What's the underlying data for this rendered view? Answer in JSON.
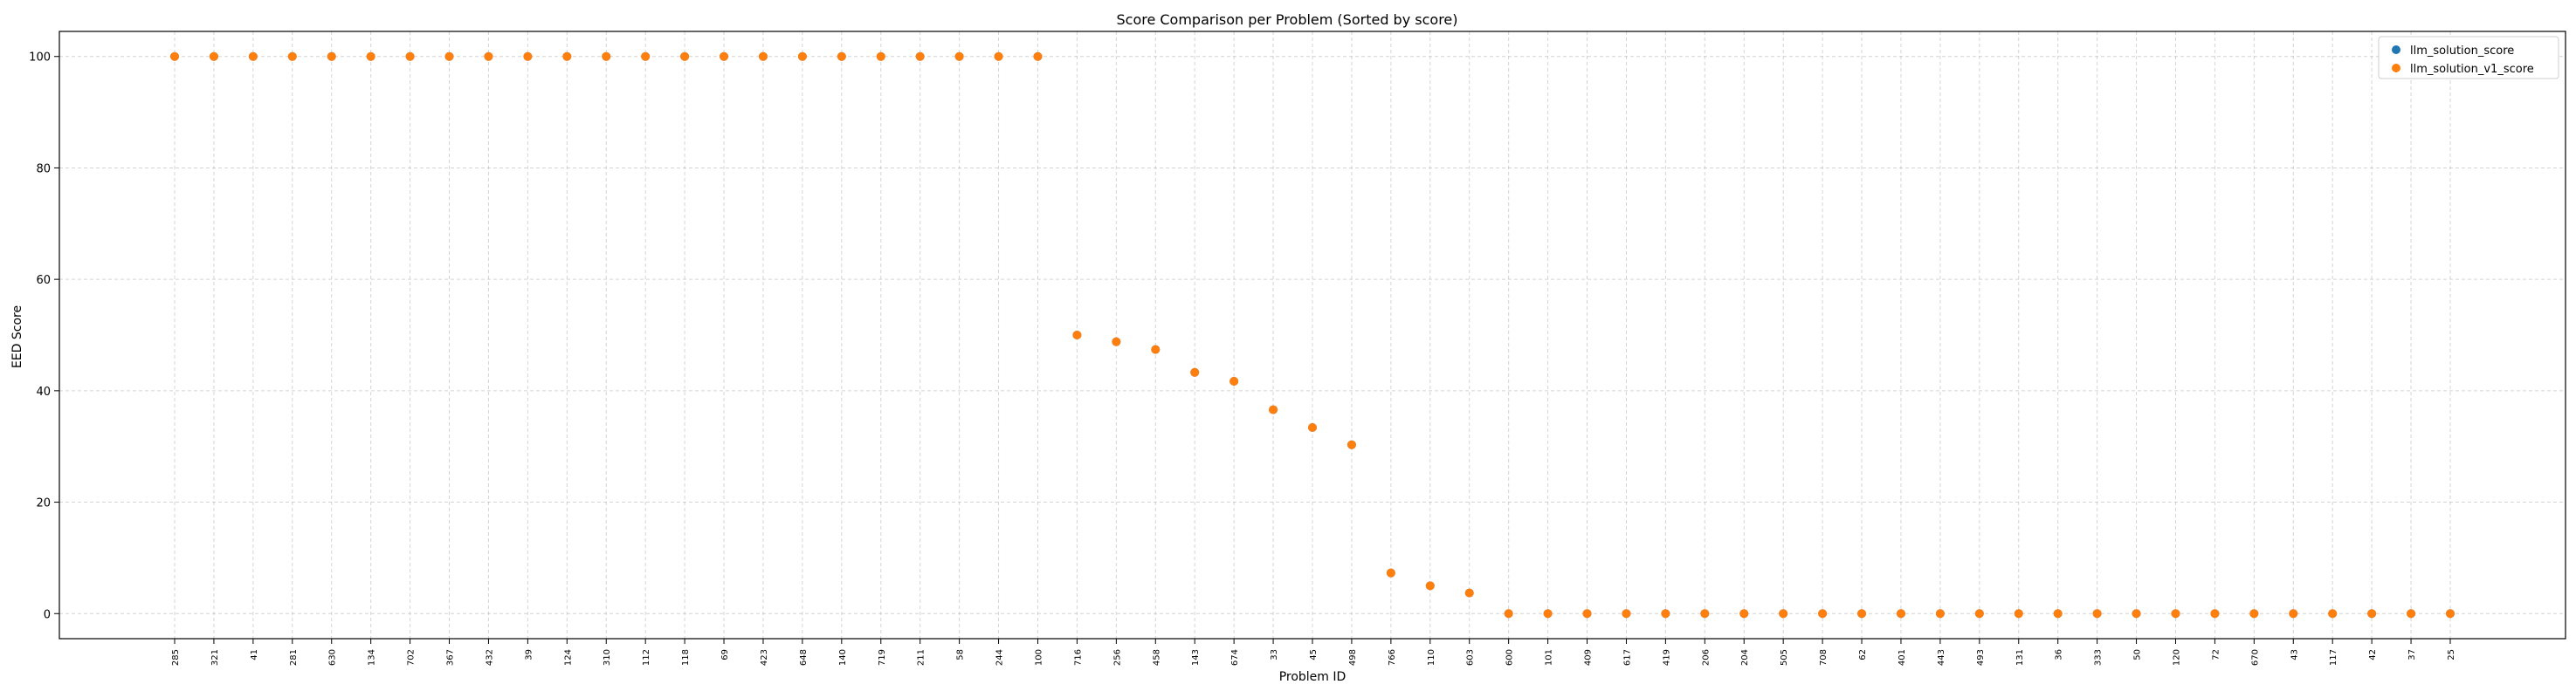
{
  "chart_data": {
    "type": "scatter",
    "title": "Score Comparison per Problem (Sorted by score)",
    "xlabel": "Problem ID",
    "ylabel": "EED Score",
    "ylim": [
      -4.5,
      104.5
    ],
    "yticks": [
      0,
      20,
      40,
      60,
      80,
      100
    ],
    "grid": true,
    "legend_position": "top-right",
    "categories": [
      "285",
      "321",
      "41",
      "281",
      "630",
      "134",
      "702",
      "367",
      "432",
      "39",
      "124",
      "310",
      "112",
      "118",
      "69",
      "423",
      "648",
      "140",
      "719",
      "211",
      "58",
      "244",
      "100",
      "716",
      "256",
      "458",
      "143",
      "674",
      "33",
      "45",
      "498",
      "766",
      "110",
      "603",
      "600",
      "101",
      "409",
      "617",
      "419",
      "206",
      "204",
      "505",
      "708",
      "62",
      "401",
      "443",
      "493",
      "131",
      "36",
      "333",
      "50",
      "120",
      "72",
      "670",
      "43",
      "117",
      "42",
      "37",
      "25"
    ],
    "series": [
      {
        "name": "llm_solution_score",
        "color": "#1f77b4",
        "values": [
          100,
          100,
          100,
          100,
          100,
          100,
          100,
          100,
          100,
          100,
          100,
          100,
          100,
          100,
          100,
          100,
          100,
          100,
          100,
          100,
          100,
          100,
          100,
          50,
          48.8,
          47.4,
          43.3,
          41.7,
          36.6,
          33.4,
          30.3,
          7.3,
          5.0,
          3.7,
          0,
          0,
          0,
          0,
          0,
          0,
          0,
          0,
          0,
          0,
          0,
          0,
          0,
          0,
          0,
          0,
          0,
          0,
          0,
          0,
          0,
          0,
          0,
          0,
          0
        ]
      },
      {
        "name": "llm_solution_v1_score",
        "color": "#ff7f0e",
        "values": [
          100,
          100,
          100,
          100,
          100,
          100,
          100,
          100,
          100,
          100,
          100,
          100,
          100,
          100,
          100,
          100,
          100,
          100,
          100,
          100,
          100,
          100,
          100,
          50,
          48.8,
          47.4,
          43.3,
          41.7,
          36.6,
          33.4,
          30.3,
          7.3,
          5.0,
          3.7,
          0,
          0,
          0,
          0,
          0,
          0,
          0,
          0,
          0,
          0,
          0,
          0,
          0,
          0,
          0,
          0,
          0,
          0,
          0,
          0,
          0,
          0,
          0,
          0,
          0
        ]
      }
    ]
  }
}
